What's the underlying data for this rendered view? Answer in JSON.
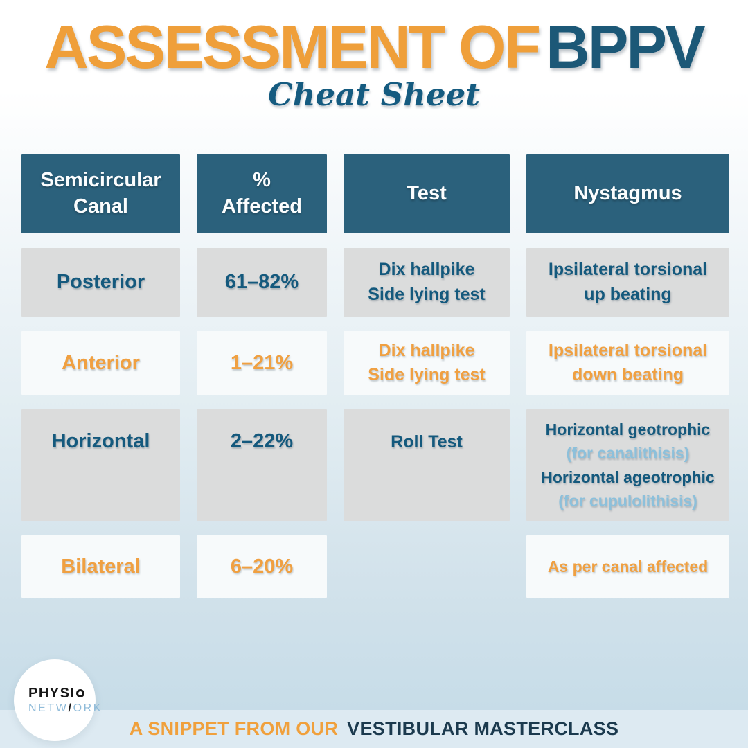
{
  "page": {
    "title_orange": "ASSESSMENT OF",
    "title_teal": "BPPV",
    "subtitle": "Cheat Sheet"
  },
  "table": {
    "headers": [
      [
        "Semicircular",
        "Canal"
      ],
      [
        "%",
        "Affected"
      ],
      [
        "Test"
      ],
      [
        "Nystagmus"
      ]
    ],
    "rows": [
      {
        "canal": "Posterior",
        "affected": "61–82%",
        "test": [
          "Dix hallpike",
          "Side lying test"
        ],
        "nystagmus": [
          "Ipsilateral torsional",
          "up beating"
        ]
      },
      {
        "canal": "Anterior",
        "affected": "1–21%",
        "test": [
          "Dix hallpike",
          "Side lying test"
        ],
        "nystagmus": [
          "Ipsilateral torsional",
          "down beating"
        ]
      },
      {
        "canal": "Horizontal",
        "affected": "2–22%",
        "test": [
          "Roll Test"
        ],
        "nystagmus": [
          "Horizontal geotrophic",
          "(for canalithisis)",
          "Horizontal ageotrophic",
          "(for cupulolithisis)"
        ]
      },
      {
        "canal": "Bilateral",
        "affected": "6–20%",
        "test": [],
        "nystagmus": [
          "As per canal affected"
        ]
      }
    ]
  },
  "logo": {
    "line1_pre": "PHYSI",
    "line2_pre": "NETW",
    "line2_slash": "/",
    "line2_post": "ORK"
  },
  "footer": {
    "prefix": "A SNIPPET FROM OUR",
    "highlight": "VESTIBULAR MASTERCLASS"
  },
  "colors": {
    "orange": "#F0A03C",
    "teal_text": "#14597D",
    "header_bg": "#2B617C",
    "light_blue": "#8CC0DB",
    "navy": "#1B3A4E"
  }
}
